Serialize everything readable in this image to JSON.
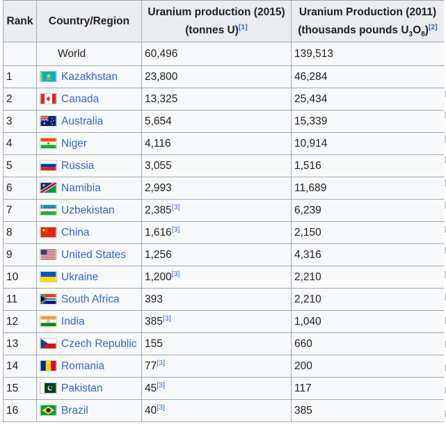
{
  "header": {
    "rank": "Rank",
    "country": "Country/Region",
    "col2015_line1": "Uranium production (2015)",
    "col2015_line2": "(tonnes U)",
    "col2015_ref": "[1]",
    "col2011_line1": "Uranium Production (2011)",
    "col2011_pre": "(thousands pounds U",
    "col2011_sub1": "3",
    "col2011_mid": "O",
    "col2011_sub2": "8",
    "col2011_post": ")",
    "col2011_ref": "[2]"
  },
  "world": {
    "label": "World",
    "v2015": "60,496",
    "v2011": "139,513"
  },
  "rows": [
    {
      "rank": "1",
      "country": "Kazakhstan",
      "flag": "kazakhstan-flag",
      "v2015": "23,800",
      "ref2015": "",
      "v2011": "46,284"
    },
    {
      "rank": "2",
      "country": "Canada",
      "flag": "canada-flag",
      "v2015": "13,325",
      "ref2015": "",
      "v2011": "25,434"
    },
    {
      "rank": "3",
      "country": "Australia",
      "flag": "australia-flag",
      "v2015": "5,654",
      "ref2015": "",
      "v2011": "15,339"
    },
    {
      "rank": "4",
      "country": "Niger",
      "flag": "niger-flag",
      "v2015": "4,116",
      "ref2015": "",
      "v2011": "10,914"
    },
    {
      "rank": "5",
      "country": "Russia",
      "flag": "russia-flag",
      "v2015": "3,055",
      "ref2015": "",
      "v2011": "1,516"
    },
    {
      "rank": "6",
      "country": "Namibia",
      "flag": "namibia-flag",
      "v2015": "2,993",
      "ref2015": "",
      "v2011": "11,689"
    },
    {
      "rank": "7",
      "country": "Uzbekistan",
      "flag": "uzbekistan-flag",
      "v2015": "2,385",
      "ref2015": "[3]",
      "v2011": "6,239"
    },
    {
      "rank": "8",
      "country": "China",
      "flag": "china-flag",
      "v2015": "1,616",
      "ref2015": "[3]",
      "v2011": "2,150"
    },
    {
      "rank": "9",
      "country": "United States",
      "flag": "united-states-flag",
      "v2015": "1,256",
      "ref2015": "",
      "v2011": "4,316"
    },
    {
      "rank": "10",
      "country": "Ukraine",
      "flag": "ukraine-flag",
      "v2015": "1,200",
      "ref2015": "[3]",
      "v2011": "2,210"
    },
    {
      "rank": "11",
      "country": "South Africa",
      "flag": "south-africa-flag",
      "v2015": "393",
      "ref2015": "",
      "v2011": "2,210"
    },
    {
      "rank": "12",
      "country": "India",
      "flag": "india-flag",
      "v2015": "385",
      "ref2015": "[3]",
      "v2011": "1,040"
    },
    {
      "rank": "13",
      "country": "Czech Republic",
      "flag": "czech-republic-flag",
      "v2015": "155",
      "ref2015": "",
      "v2011": "660"
    },
    {
      "rank": "14",
      "country": "Romania",
      "flag": "romania-flag",
      "v2015": "77",
      "ref2015": "[3]",
      "v2011": "200"
    },
    {
      "rank": "15",
      "country": "Pakistan",
      "flag": "pakistan-flag",
      "v2015": "45",
      "ref2015": "[3]",
      "v2011": "117"
    },
    {
      "rank": "16",
      "country": "Brazil",
      "flag": "brazil-flag",
      "v2015": "40",
      "ref2015": "[3]",
      "v2011": "385"
    }
  ],
  "colors": {
    "link": "#3366cc",
    "header_bg": "#eaecf0",
    "cell_bg": "#f8f9fa",
    "border": "#a2a9b1"
  }
}
